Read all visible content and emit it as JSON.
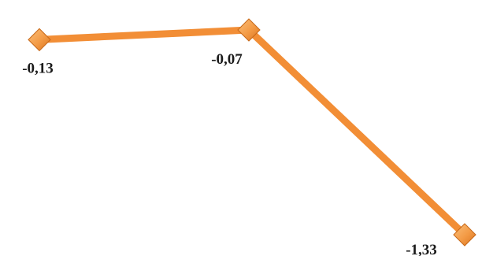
{
  "chart_data": {
    "type": "line",
    "x": [
      1,
      2,
      3
    ],
    "series": [
      {
        "values": [
          -0.13,
          -0.07,
          -1.33
        ],
        "data_labels": [
          "-0,13",
          "-0,07",
          "-1,33"
        ],
        "color": "#f28e36",
        "marker": "diamond"
      }
    ],
    "title": "",
    "xlabel": "",
    "ylabel": "",
    "grid": false,
    "legend": "none",
    "axes_visible": false
  }
}
